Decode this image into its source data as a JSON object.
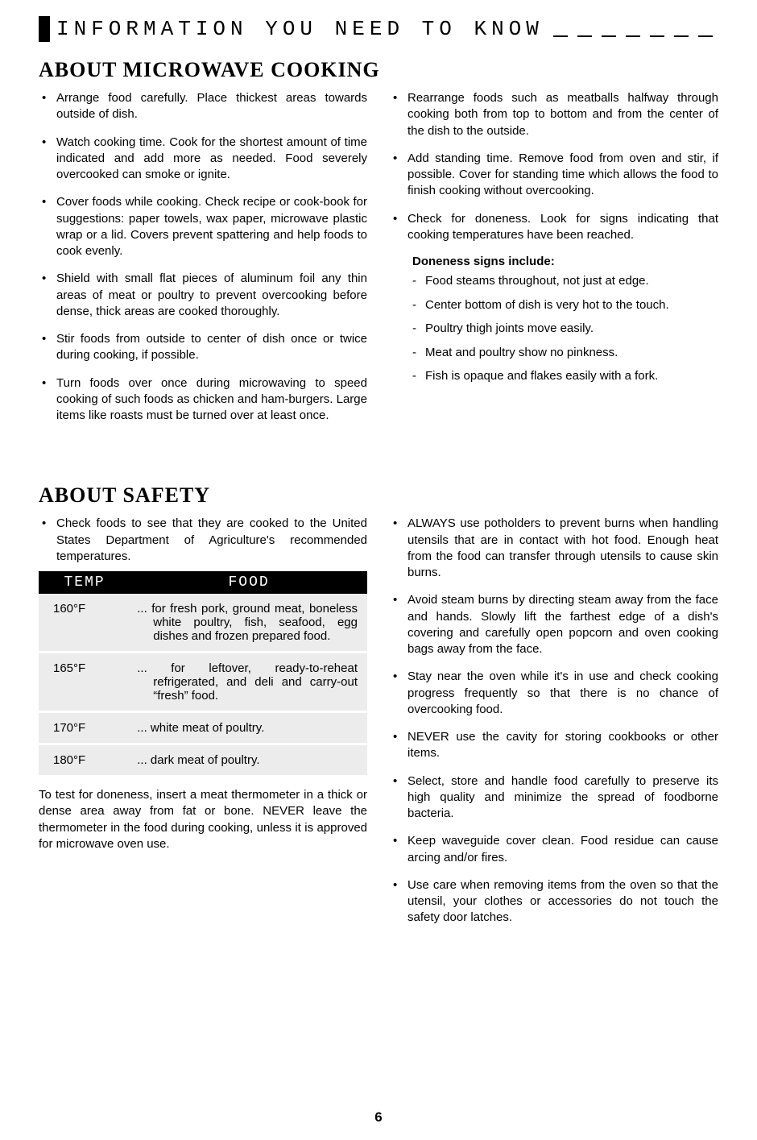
{
  "banner": "INFORMATION YOU NEED TO KNOW",
  "page_number": "6",
  "cooking": {
    "heading": "ABOUT MICROWAVE COOKING",
    "left": [
      "Arrange food carefully. Place thickest areas towards outside of dish.",
      "Watch cooking time. Cook for the shortest amount of time indicated and add more as needed. Food severely overcooked can smoke or ignite.",
      "Cover foods while cooking. Check recipe or cook-book for suggestions: paper towels, wax paper, microwave plastic wrap or a lid. Covers prevent spattering and help foods to cook evenly.",
      "Shield with small flat pieces of aluminum foil any thin areas of meat or poultry to prevent overcooking before dense, thick areas are cooked thoroughly.",
      "Stir foods from outside to center of dish once or twice during cooking, if possible.",
      "Turn foods over once during microwaving to speed cooking of such foods as chicken and ham-burgers. Large items like roasts must be turned over at least once."
    ],
    "right": [
      "Rearrange foods such as meatballs halfway through cooking both from top to bottom and from the center of the dish to the outside.",
      "Add standing time. Remove food from oven and stir, if possible. Cover for standing time which allows the food to finish cooking without overcooking.",
      "Check for doneness. Look for signs indicating that cooking temperatures have been reached."
    ],
    "doneness_title": "Doneness signs include:",
    "doneness_signs": [
      "Food steams throughout, not just at edge.",
      "Center bottom of dish is very hot to the touch.",
      "Poultry thigh joints move easily.",
      "Meat and poultry show no pinkness.",
      "Fish is opaque and flakes easily with a fork."
    ]
  },
  "safety": {
    "heading": "ABOUT SAFETY",
    "intro": "Check foods to see that they are cooked to the United States Department of Agriculture's recommended temperatures.",
    "table": {
      "col_temp": "TEMP",
      "col_food": "FOOD",
      "rows": [
        {
          "temp": "160°F",
          "food": "... for fresh pork, ground meat, boneless white poultry, fish, seafood, egg dishes and frozen prepared food."
        },
        {
          "temp": "165°F",
          "food": "... for leftover, ready-to-reheat refrigerated, and deli and carry-out “fresh” food."
        },
        {
          "temp": "170°F",
          "food": "... white meat of poultry."
        },
        {
          "temp": "180°F",
          "food": "... dark meat of poultry."
        }
      ]
    },
    "after_table": "To test for doneness, insert a meat thermometer in a thick or dense area away from fat or bone. NEVER leave the thermometer in the food during cooking, unless it is approved for microwave oven use.",
    "right": [
      "ALWAYS use potholders to prevent burns when handling utensils that are in contact with hot food. Enough heat from the food can transfer through utensils to cause skin burns.",
      "Avoid steam burns by directing steam away from the face and hands. Slowly lift the farthest edge of a dish's covering and carefully open popcorn and oven cooking bags away from the face.",
      "Stay near the oven while it's in use and check cooking progress frequently so that there is no chance of overcooking food.",
      "NEVER use the cavity for storing cookbooks or other items.",
      "Select, store and handle food carefully to preserve its high quality and minimize the spread of foodborne bacteria.",
      "Keep waveguide cover clean. Food residue can cause arcing and/or fires.",
      "Use care when removing items from the oven so that the utensil, your clothes or accessories do not touch the safety door latches."
    ]
  }
}
